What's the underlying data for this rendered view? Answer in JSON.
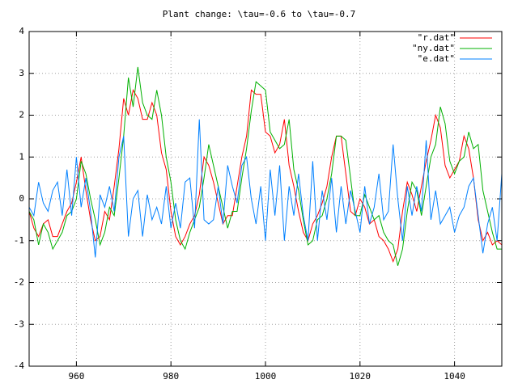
{
  "chart_data": {
    "type": "line",
    "title": "Plant change: \\tau=-0.6 to \\tau=-0.7",
    "x": [
      950,
      951,
      952,
      953,
      954,
      955,
      956,
      957,
      958,
      959,
      960,
      961,
      962,
      963,
      964,
      965,
      966,
      967,
      968,
      969,
      970,
      971,
      972,
      973,
      974,
      975,
      976,
      977,
      978,
      979,
      980,
      981,
      982,
      983,
      984,
      985,
      986,
      987,
      988,
      989,
      990,
      991,
      992,
      993,
      994,
      995,
      996,
      997,
      998,
      999,
      1000,
      1001,
      1002,
      1003,
      1004,
      1005,
      1006,
      1007,
      1008,
      1009,
      1010,
      1011,
      1012,
      1013,
      1014,
      1015,
      1016,
      1017,
      1018,
      1019,
      1020,
      1021,
      1022,
      1023,
      1024,
      1025,
      1026,
      1027,
      1028,
      1029,
      1030,
      1031,
      1032,
      1033,
      1034,
      1035,
      1036,
      1037,
      1038,
      1039,
      1040,
      1041,
      1042,
      1043,
      1044,
      1045,
      1046,
      1047,
      1048,
      1049,
      1050
    ],
    "series": [
      {
        "name": "\"r.dat\"",
        "color": "#ff0000",
        "values": [
          -0.3,
          -0.7,
          -0.9,
          -0.6,
          -0.5,
          -0.9,
          -0.9,
          -0.6,
          -0.3,
          -0.1,
          0.4,
          1.0,
          0.2,
          -0.5,
          -1.0,
          -0.9,
          -0.3,
          -0.5,
          0.3,
          1.2,
          2.4,
          2.0,
          2.6,
          2.4,
          1.9,
          1.9,
          2.3,
          2.0,
          1.1,
          0.7,
          -0.3,
          -0.9,
          -1.1,
          -0.9,
          -0.6,
          -0.4,
          0.1,
          1.0,
          0.8,
          0.4,
          -0.1,
          -0.6,
          -0.4,
          -0.4,
          0.3,
          1.0,
          1.5,
          2.6,
          2.5,
          2.5,
          1.6,
          1.5,
          1.1,
          1.3,
          1.9,
          0.8,
          0.3,
          -0.3,
          -0.8,
          -1.0,
          -0.6,
          -0.4,
          -0.1,
          0.3,
          1.0,
          1.5,
          1.5,
          0.6,
          -0.3,
          -0.4,
          0.0,
          -0.2,
          -0.6,
          -0.5,
          -0.9,
          -1.0,
          -1.2,
          -1.5,
          -1.2,
          -0.3,
          0.4,
          0.1,
          -0.3,
          0.3,
          0.9,
          1.4,
          2.0,
          1.7,
          0.8,
          0.5,
          0.7,
          0.9,
          1.5,
          1.2,
          0.5,
          -0.5,
          -1.0,
          -0.8,
          -1.1,
          -1.0,
          -1.1
        ]
      },
      {
        "name": "\"ny.dat\"",
        "color": "#00b000",
        "values": [
          -0.3,
          -0.5,
          -1.1,
          -0.6,
          -0.8,
          -1.2,
          -1.0,
          -0.8,
          -0.4,
          -0.3,
          0.0,
          0.9,
          0.6,
          0.0,
          -0.5,
          -1.1,
          -0.8,
          -0.2,
          -0.4,
          0.5,
          1.5,
          2.9,
          2.2,
          3.15,
          2.3,
          2.0,
          1.9,
          2.6,
          2.0,
          1.0,
          0.4,
          -0.5,
          -1.0,
          -1.2,
          -0.8,
          -0.5,
          -0.2,
          0.5,
          1.3,
          0.8,
          0.3,
          -0.2,
          -0.7,
          -0.3,
          -0.3,
          0.5,
          1.2,
          2.1,
          2.8,
          2.7,
          2.6,
          1.6,
          1.4,
          1.2,
          1.3,
          1.9,
          0.7,
          0.2,
          -0.5,
          -1.1,
          -1.0,
          -0.5,
          -0.4,
          0.0,
          0.6,
          1.5,
          1.5,
          1.4,
          0.5,
          -0.4,
          -0.4,
          0.1,
          -0.2,
          -0.5,
          -0.4,
          -0.8,
          -1.0,
          -1.1,
          -1.6,
          -1.2,
          -0.3,
          0.4,
          0.2,
          -0.4,
          0.3,
          1.0,
          1.3,
          2.2,
          1.8,
          0.9,
          0.6,
          0.9,
          1.0,
          1.6,
          1.2,
          1.3,
          0.2,
          -0.3,
          -0.8,
          -1.2,
          -1.2
        ]
      },
      {
        "name": "\"e.dat\"",
        "color": "#0080ff",
        "values": [
          -0.2,
          -0.4,
          0.4,
          -0.1,
          -0.3,
          0.2,
          0.4,
          -0.4,
          0.7,
          -0.4,
          1.0,
          -0.2,
          0.5,
          -0.3,
          -1.4,
          0.1,
          -0.2,
          0.3,
          -0.3,
          1.0,
          1.5,
          -0.9,
          0.0,
          0.2,
          -0.9,
          0.1,
          -0.5,
          -0.2,
          -0.6,
          0.3,
          -0.7,
          -0.1,
          -0.7,
          0.4,
          0.5,
          -0.7,
          1.9,
          -0.5,
          -0.6,
          -0.5,
          0.3,
          -0.6,
          0.8,
          0.3,
          -0.1,
          0.8,
          1.0,
          0.0,
          -0.6,
          0.3,
          -1.0,
          0.7,
          -0.4,
          0.8,
          -1.0,
          0.3,
          -0.4,
          0.6,
          -0.4,
          -1.0,
          0.9,
          -1.0,
          0.2,
          -0.5,
          0.5,
          -0.8,
          0.3,
          -0.6,
          0.2,
          -0.3,
          -0.8,
          0.3,
          -0.6,
          -0.2,
          0.6,
          -0.5,
          -0.3,
          1.3,
          0.0,
          -1.0,
          0.3,
          -0.4,
          0.3,
          -0.3,
          1.4,
          -0.5,
          0.2,
          -0.6,
          -0.4,
          -0.2,
          -0.8,
          -0.4,
          -0.2,
          0.3,
          0.5,
          -0.4,
          -1.3,
          -0.6,
          -0.2,
          -1.0,
          0.6
        ]
      }
    ],
    "xlim": [
      950,
      1050
    ],
    "ylim": [
      -4,
      4
    ],
    "xticks": [
      960,
      980,
      1000,
      1020,
      1040
    ],
    "yticks": [
      -4,
      -3,
      -2,
      -1,
      0,
      1,
      2,
      3,
      4
    ],
    "grid": true,
    "legend": "top-right"
  }
}
